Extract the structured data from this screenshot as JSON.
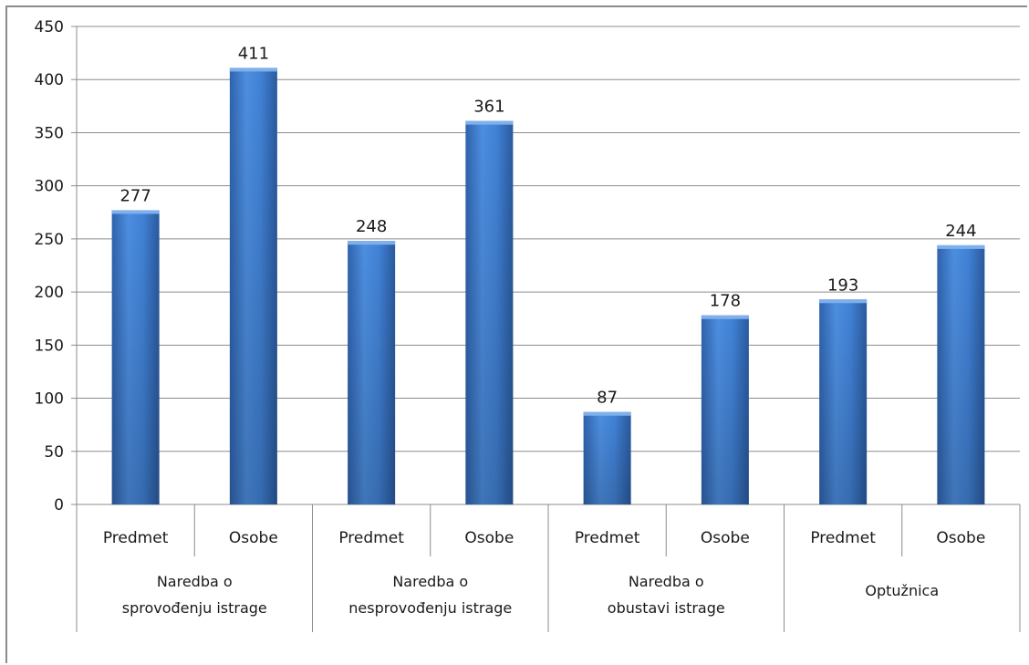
{
  "chart_data": {
    "type": "bar",
    "groups": [
      {
        "label_lines": [
          "Naredba o",
          "sprovođenju istrage"
        ],
        "categories": [
          "Predmet",
          "Osobe"
        ],
        "values": [
          277,
          411
        ]
      },
      {
        "label_lines": [
          "Naredba o",
          "nesprovođenju istrage"
        ],
        "categories": [
          "Predmet",
          "Osobe"
        ],
        "values": [
          248,
          361
        ]
      },
      {
        "label_lines": [
          "Naredba o",
          "obustavi istrage"
        ],
        "categories": [
          "Predmet",
          "Osobe"
        ],
        "values": [
          87,
          178
        ]
      },
      {
        "label_lines": [
          "Optužnica"
        ],
        "categories": [
          "Predmet",
          "Osobe"
        ],
        "values": [
          193,
          244
        ]
      }
    ],
    "ylim": [
      0,
      450
    ],
    "yticks": [
      0,
      50,
      100,
      150,
      200,
      250,
      300,
      350,
      400,
      450
    ],
    "grid": true,
    "bar_color": "#3a78c9"
  }
}
